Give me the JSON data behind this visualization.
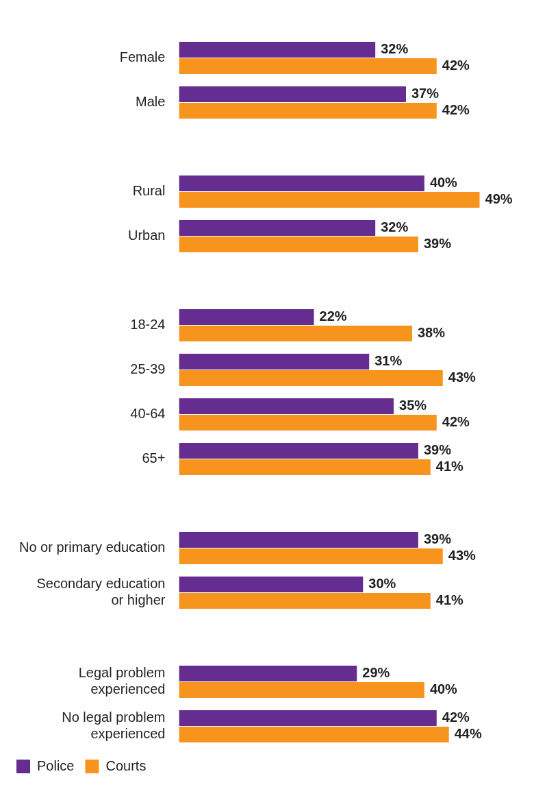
{
  "chart_data": {
    "type": "bar",
    "orientation": "horizontal",
    "categories": [
      "Female",
      "Male",
      null,
      "Rural",
      "Urban",
      null,
      "18-24",
      "25-39",
      "40-64",
      "65+",
      null,
      "No or primary education",
      "Secondary education or higher",
      null,
      "Legal problem experienced",
      "No legal problem experienced"
    ],
    "series": [
      {
        "name": "Police",
        "color": "#652d90",
        "values": [
          32,
          37,
          null,
          40,
          32,
          null,
          22,
          31,
          35,
          39,
          null,
          39,
          30,
          null,
          29,
          42
        ],
        "value_labels": [
          "32%",
          "37%",
          null,
          "40%",
          "32%",
          null,
          "22%",
          "31%",
          "35%",
          "39%",
          null,
          "39%",
          "30%",
          null,
          "29%",
          "42%"
        ]
      },
      {
        "name": "Courts",
        "color": "#f7941d",
        "values": [
          42,
          42,
          null,
          49,
          39,
          null,
          38,
          43,
          42,
          41,
          null,
          43,
          41,
          null,
          40,
          44
        ],
        "value_labels": [
          "42%",
          "42%",
          null,
          "49%",
          "39%",
          null,
          "38%",
          "43%",
          "42%",
          "41%",
          null,
          "43%",
          "41%",
          null,
          "40%",
          "44%"
        ]
      }
    ],
    "legend": "bottom left",
    "grid": false
  }
}
